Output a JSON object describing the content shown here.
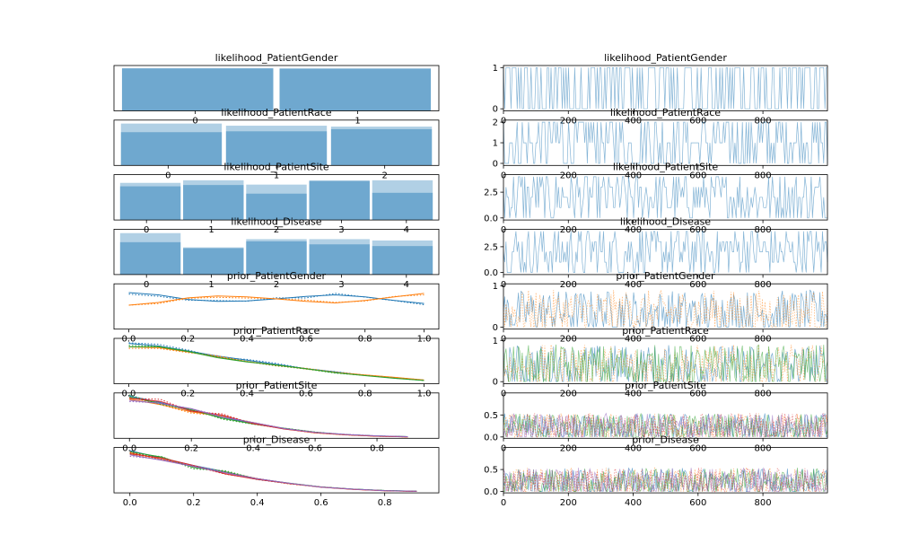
{
  "chart_data": [
    {
      "type": "bar",
      "title": "likelihood_PatientGender",
      "categories": [
        "0",
        "1"
      ],
      "series": [
        {
          "values": [
            0.985,
            0.98
          ]
        },
        {
          "values": [
            0.985,
            0.98
          ]
        }
      ],
      "ylim": [
        0,
        1.05
      ],
      "xticks": [
        "0",
        "1"
      ],
      "yticks": [],
      "color": "#1f77b4"
    },
    {
      "type": "line",
      "title": "likelihood_PatientGender",
      "trace": {
        "min": 0,
        "max": 1,
        "style": "categorical",
        "levels": 2,
        "colors": [
          "#1f77b4"
        ]
      },
      "xlim": [
        0,
        999
      ],
      "ylim": [
        -0.05,
        1.05
      ],
      "xticks": [
        "0",
        "200",
        "400",
        "600",
        "800"
      ],
      "yticks": [
        "0",
        "1"
      ]
    },
    {
      "type": "bar",
      "title": "likelihood_PatientRace",
      "categories": [
        "0",
        "1",
        "2"
      ],
      "series": [
        {
          "values": [
            0.97,
            0.92,
            0.9
          ]
        },
        {
          "values": [
            0.77,
            0.79,
            0.84
          ]
        }
      ],
      "ylim": [
        0,
        1.05
      ],
      "xticks": [
        "0",
        "1",
        "2"
      ],
      "yticks": [],
      "color": "#1f77b4"
    },
    {
      "type": "line",
      "title": "likelihood_PatientRace",
      "trace": {
        "min": 0,
        "max": 2,
        "style": "categorical",
        "levels": 3,
        "colors": [
          "#1f77b4"
        ]
      },
      "xlim": [
        0,
        999
      ],
      "ylim": [
        -0.1,
        2.1
      ],
      "xticks": [
        "0",
        "200",
        "400",
        "600",
        "800"
      ],
      "yticks": [
        "0",
        "1",
        "2"
      ]
    },
    {
      "type": "bar",
      "title": "likelihood_PatientSite",
      "categories": [
        "0",
        "1",
        "2",
        "3",
        "4"
      ],
      "series": [
        {
          "values": [
            0.86,
            0.92,
            0.82,
            0.92,
            0.92
          ]
        },
        {
          "values": [
            0.78,
            0.81,
            0.61,
            0.9,
            0.63
          ]
        }
      ],
      "ylim": [
        0,
        1.05
      ],
      "xticks": [
        "0",
        "1",
        "2",
        "3",
        "4"
      ],
      "yticks": [],
      "color": "#1f77b4"
    },
    {
      "type": "line",
      "title": "likelihood_PatientSite",
      "trace": {
        "min": 0,
        "max": 4,
        "style": "categorical",
        "levels": 5,
        "colors": [
          "#1f77b4"
        ]
      },
      "xlim": [
        0,
        999
      ],
      "ylim": [
        -0.2,
        4.2
      ],
      "xticks": [
        "0",
        "200",
        "400",
        "600",
        "800"
      ],
      "yticks": [
        "0.0",
        "2.5"
      ]
    },
    {
      "type": "bar",
      "title": "likelihood_Disease",
      "categories": [
        "0",
        "1",
        "2",
        "3",
        "4"
      ],
      "series": [
        {
          "values": [
            0.96,
            0.63,
            0.82,
            0.82,
            0.79
          ]
        },
        {
          "values": [
            0.75,
            0.61,
            0.77,
            0.7,
            0.66
          ]
        }
      ],
      "ylim": [
        0,
        1.05
      ],
      "xticks": [
        "0",
        "1",
        "2",
        "3",
        "4"
      ],
      "yticks": [],
      "color": "#1f77b4"
    },
    {
      "type": "line",
      "title": "likelihood_Disease",
      "trace": {
        "min": 0,
        "max": 4,
        "style": "categorical",
        "levels": 5,
        "colors": [
          "#1f77b4"
        ]
      },
      "xlim": [
        0,
        999
      ],
      "ylim": [
        -0.2,
        4.2
      ],
      "xticks": [
        "0",
        "200",
        "400",
        "600",
        "800"
      ],
      "yticks": [
        "0.0",
        "2.5"
      ]
    },
    {
      "type": "line",
      "title": "prior_PatientGender",
      "x": [
        0.0,
        0.1,
        0.2,
        0.3,
        0.4,
        0.5,
        0.6,
        0.7,
        0.8,
        0.9,
        1.0
      ],
      "series": [
        {
          "values": [
            1.25,
            1.16,
            0.98,
            0.9,
            0.92,
            1.0,
            1.1,
            1.16,
            1.08,
            0.94,
            0.82
          ],
          "color": "#1f77b4"
        },
        {
          "values": [
            0.75,
            0.86,
            1.04,
            1.12,
            1.08,
            1.0,
            0.9,
            0.84,
            0.94,
            1.08,
            1.22
          ],
          "color": "#ff7f0e"
        }
      ],
      "xlim": [
        -0.05,
        1.05
      ],
      "ylim": [
        -0.2,
        1.6
      ],
      "xticks": [
        "0.0",
        "0.2",
        "0.4",
        "0.6",
        "0.8",
        "1.0"
      ],
      "yticks": []
    },
    {
      "type": "line",
      "title": "prior_PatientGender",
      "trace": {
        "min": 0,
        "max": 1,
        "style": "noise",
        "colors": [
          "#1f77b4",
          "#ff7f0e"
        ]
      },
      "xlim": [
        0,
        999
      ],
      "ylim": [
        -0.05,
        1.05
      ],
      "xticks": [
        "0",
        "200",
        "400",
        "600",
        "800"
      ],
      "yticks": [
        "0",
        "1"
      ]
    },
    {
      "type": "line",
      "title": "prior_PatientRace",
      "x": [
        0.0,
        0.1,
        0.2,
        0.3,
        0.4,
        0.5,
        0.6,
        0.7,
        0.8,
        0.9,
        1.0
      ],
      "series": [
        {
          "values": [
            2.3,
            2.15,
            1.85,
            1.55,
            1.3,
            1.05,
            0.8,
            0.6,
            0.4,
            0.25,
            0.1
          ],
          "color": "#1f77b4"
        },
        {
          "values": [
            2.1,
            2.05,
            1.8,
            1.5,
            1.22,
            1.0,
            0.78,
            0.57,
            0.42,
            0.28,
            0.12
          ],
          "color": "#ff7f0e"
        },
        {
          "values": [
            2.1,
            2.1,
            1.82,
            1.45,
            1.2,
            1.02,
            0.8,
            0.55,
            0.38,
            0.22,
            0.09
          ],
          "color": "#2ca02c"
        }
      ],
      "xlim": [
        -0.05,
        1.05
      ],
      "ylim": [
        -0.1,
        2.6
      ],
      "xticks": [
        "0.0",
        "0.2",
        "0.4",
        "0.6",
        "0.8",
        "1.0"
      ],
      "yticks": []
    },
    {
      "type": "line",
      "title": "prior_PatientRace",
      "trace": {
        "min": 0,
        "max": 1,
        "style": "noise",
        "colors": [
          "#1f77b4",
          "#ff7f0e",
          "#2ca02c"
        ]
      },
      "xlim": [
        0,
        999
      ],
      "ylim": [
        -0.05,
        1.05
      ],
      "xticks": [
        "0",
        "200",
        "400",
        "600",
        "800"
      ],
      "yticks": [
        "0",
        "1"
      ]
    },
    {
      "type": "line",
      "title": "prior_PatientSite",
      "x": [
        0.0,
        0.1,
        0.2,
        0.3,
        0.4,
        0.5,
        0.6,
        0.7,
        0.8,
        0.9
      ],
      "series": [
        {
          "values": [
            3.9,
            3.3,
            2.5,
            1.9,
            1.3,
            0.8,
            0.45,
            0.25,
            0.12,
            0.05
          ],
          "color": "#1f77b4"
        },
        {
          "values": [
            3.6,
            3.1,
            2.4,
            2.0,
            1.35,
            0.8,
            0.42,
            0.22,
            0.1,
            0.04
          ],
          "color": "#ff7f0e"
        },
        {
          "values": [
            3.8,
            3.2,
            2.6,
            1.8,
            1.25,
            0.85,
            0.48,
            0.24,
            0.11,
            0.05
          ],
          "color": "#2ca02c"
        },
        {
          "values": [
            3.7,
            3.4,
            2.5,
            2.1,
            1.3,
            0.78,
            0.44,
            0.23,
            0.1,
            0.04
          ],
          "color": "#d62728"
        },
        {
          "values": [
            3.5,
            3.2,
            2.7,
            1.9,
            1.4,
            0.82,
            0.46,
            0.26,
            0.13,
            0.05
          ],
          "color": "#9467bd"
        }
      ],
      "xlim": [
        -0.05,
        1.0
      ],
      "ylim": [
        -0.1,
        4.2
      ],
      "xticks": [
        "0.0",
        "0.2",
        "0.4",
        "0.6",
        "0.8"
      ],
      "yticks": []
    },
    {
      "type": "line",
      "title": "prior_PatientSite",
      "trace": {
        "min": 0,
        "max": 0.6,
        "style": "noise",
        "colors": [
          "#1f77b4",
          "#ff7f0e",
          "#2ca02c",
          "#d62728",
          "#9467bd"
        ]
      },
      "xlim": [
        0,
        999
      ],
      "ylim": [
        -0.03,
        1.0
      ],
      "xticks": [
        "0",
        "200",
        "400",
        "600",
        "800"
      ],
      "yticks": [
        "0.0",
        "0.5"
      ]
    },
    {
      "type": "line",
      "title": "prior_Disease",
      "x": [
        0.0,
        0.1,
        0.2,
        0.3,
        0.4,
        0.5,
        0.6,
        0.7,
        0.8,
        0.9
      ],
      "series": [
        {
          "values": [
            3.9,
            3.2,
            2.5,
            1.9,
            1.2,
            0.8,
            0.45,
            0.25,
            0.12,
            0.05
          ],
          "color": "#1f77b4"
        },
        {
          "values": [
            3.7,
            3.1,
            2.4,
            1.8,
            1.25,
            0.78,
            0.44,
            0.24,
            0.11,
            0.04
          ],
          "color": "#ff7f0e"
        },
        {
          "values": [
            3.8,
            3.3,
            2.3,
            1.9,
            1.22,
            0.82,
            0.46,
            0.26,
            0.12,
            0.05
          ],
          "color": "#2ca02c"
        },
        {
          "values": [
            3.6,
            3.2,
            2.5,
            1.7,
            1.18,
            0.79,
            0.44,
            0.23,
            0.1,
            0.04
          ],
          "color": "#d62728"
        },
        {
          "values": [
            3.5,
            3.0,
            2.4,
            1.8,
            1.24,
            0.81,
            0.45,
            0.25,
            0.11,
            0.05
          ],
          "color": "#9467bd"
        }
      ],
      "xlim": [
        -0.05,
        0.97
      ],
      "ylim": [
        -0.1,
        4.2
      ],
      "xticks": [
        "0.0",
        "0.2",
        "0.4",
        "0.6",
        "0.8"
      ],
      "yticks": []
    },
    {
      "type": "line",
      "title": "prior_Disease",
      "trace": {
        "min": 0,
        "max": 0.6,
        "style": "noise",
        "colors": [
          "#1f77b4",
          "#ff7f0e",
          "#2ca02c",
          "#d62728",
          "#9467bd"
        ]
      },
      "xlim": [
        0,
        999
      ],
      "ylim": [
        -0.03,
        1.0
      ],
      "xticks": [
        "0",
        "200",
        "400",
        "600",
        "800"
      ],
      "yticks": [
        "0.0",
        "0.5"
      ]
    }
  ]
}
